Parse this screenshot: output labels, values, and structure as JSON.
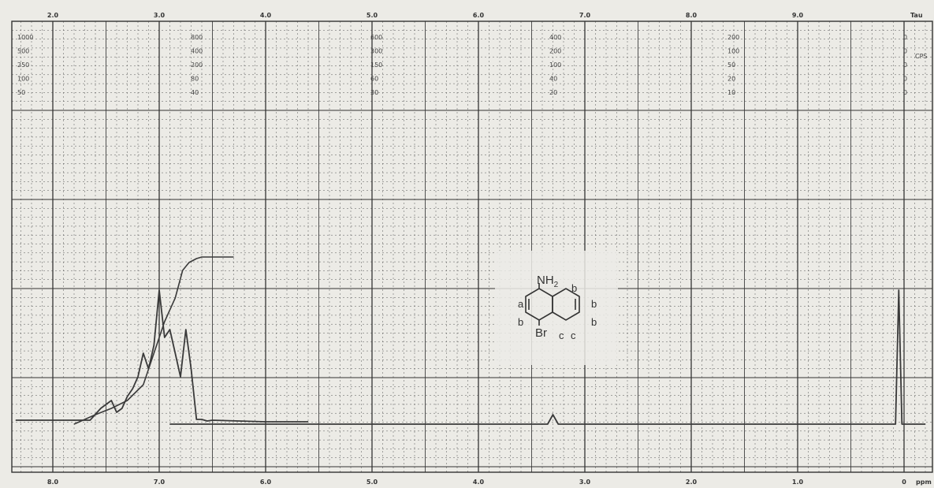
{
  "chart_data": {
    "type": "line",
    "title": "",
    "top_axis": {
      "label": "Tau",
      "ticks": [
        "2.0",
        "3.0",
        "4.0",
        "5.0",
        "6.0",
        "7.0",
        "8.0",
        "9.0"
      ],
      "range": [
        1.6,
        10.0
      ]
    },
    "bottom_axis": {
      "label": "ppm",
      "ticks": [
        "8.0",
        "7.0",
        "6.0",
        "5.0",
        "4.0",
        "3.0",
        "2.0",
        "1.0",
        "0"
      ],
      "range": [
        8.4,
        0.0
      ],
      "direction": "decreasing-left-to-right"
    },
    "cps_scales": [
      [
        "1000",
        "500",
        "250",
        "100",
        "50"
      ],
      [
        "800",
        "400",
        "200",
        "80",
        "40"
      ],
      [
        "600",
        "300",
        "150",
        "60",
        "30"
      ],
      [
        "400",
        "200",
        "100",
        "40",
        "20"
      ],
      [
        "200",
        "100",
        "50",
        "20",
        "10"
      ],
      [
        "0",
        "0",
        "0",
        "0",
        "0"
      ]
    ],
    "cps_label": "CPS",
    "grid": true,
    "series": [
      {
        "x": [
          8.35,
          7.65,
          7.55,
          7.5,
          7.45,
          7.4,
          7.35,
          7.3,
          7.25,
          7.2,
          7.15,
          7.1,
          7.05,
          7.0,
          6.95,
          6.9,
          6.85,
          6.8,
          6.75,
          6.7,
          6.65,
          6.6,
          6.55,
          6.5,
          6.0,
          5.6
        ],
        "y": [
          0.05,
          0.05,
          0.2,
          0.25,
          0.3,
          0.15,
          0.2,
          0.35,
          0.45,
          0.6,
          0.9,
          0.7,
          1.0,
          1.7,
          1.1,
          1.2,
          0.9,
          0.6,
          1.2,
          0.7,
          0.06,
          0.06,
          0.04,
          0.05,
          0.03,
          0.03
        ]
      },
      {
        "x": [
          6.9,
          3.5,
          3.35,
          3.3,
          3.25,
          0.2,
          0.08,
          0.05,
          0.02,
          -0.2
        ],
        "y": [
          0.0,
          0.0,
          0.0,
          0.12,
          0.0,
          0.0,
          0.0,
          1.7,
          0.0,
          0.0
        ]
      },
      {
        "x": [
          7.8,
          7.6,
          7.45,
          7.3,
          7.15,
          7.05,
          6.95,
          6.85,
          6.78,
          6.72,
          6.65,
          6.6,
          6.3
        ],
        "y": [
          0.0,
          0.12,
          0.2,
          0.3,
          0.5,
          0.9,
          1.3,
          1.6,
          1.95,
          2.05,
          2.1,
          2.12,
          2.12
        ]
      }
    ],
    "structure": {
      "substituent_top": "NH",
      "substituent_top_subscript": "2",
      "substituent_bottom": "Br",
      "labels": [
        "a",
        "b",
        "b",
        "b",
        "b",
        "c",
        "c"
      ]
    }
  }
}
